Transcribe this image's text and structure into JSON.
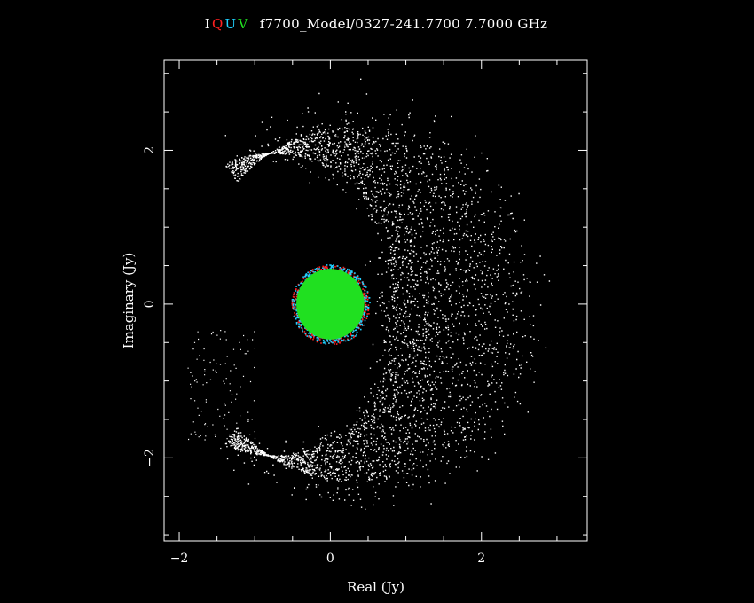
{
  "title": {
    "stokes": [
      {
        "label": "I",
        "color": "#ffffff"
      },
      {
        "label": "Q",
        "color": "#ff2020"
      },
      {
        "label": "U",
        "color": "#20d0ff"
      },
      {
        "label": "V",
        "color": "#20e020"
      }
    ],
    "text": "f7700_Model/0327-241.7700 7.7000 GHz"
  },
  "chart_data": {
    "type": "scatter",
    "xlabel": "Real (Jy)",
    "ylabel": "Imaginary (Jy)",
    "xlim": [
      -2.2,
      3.4
    ],
    "ylim": [
      -3.08,
      3.17
    ],
    "xticks": [
      {
        "value": -2,
        "label": "−2"
      },
      {
        "value": 0,
        "label": "0"
      },
      {
        "value": 2,
        "label": "2"
      }
    ],
    "yticks": [
      {
        "value": -2,
        "label": "−2"
      },
      {
        "value": 0,
        "label": "0"
      },
      {
        "value": 2,
        "label": "2"
      }
    ],
    "grid": false,
    "series": [
      {
        "name": "I",
        "color": "#ffffff",
        "shape": "crescent",
        "center": [
          0.0,
          0.0
        ],
        "inner_radius": 0.75,
        "outer_radius": 2.65,
        "opening_side": "left"
      },
      {
        "name": "Q",
        "color": "#ff2020",
        "shape": "disk",
        "center": [
          0.0,
          0.0
        ],
        "radius": 0.5
      },
      {
        "name": "U",
        "color": "#20d0ff",
        "shape": "disk",
        "center": [
          0.0,
          0.0
        ],
        "radius": 0.5
      },
      {
        "name": "V",
        "color": "#20e020",
        "shape": "disk",
        "center": [
          0.0,
          0.0
        ],
        "radius": 0.45
      }
    ]
  }
}
